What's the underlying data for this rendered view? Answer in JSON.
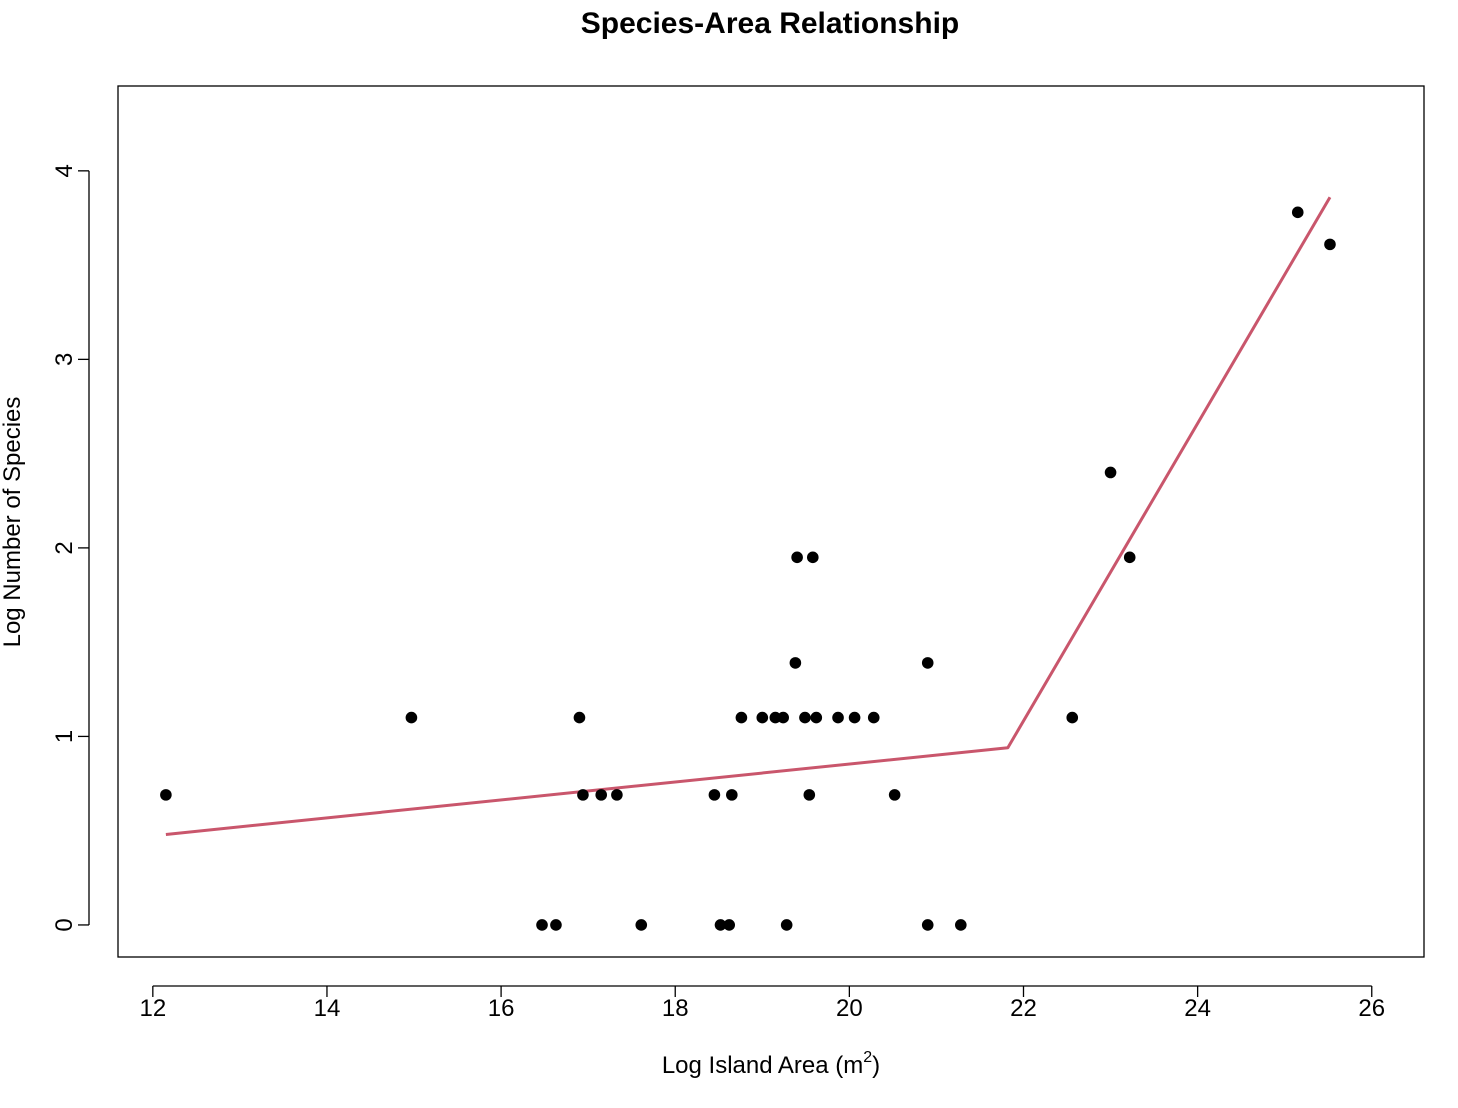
{
  "chart_data": {
    "type": "scatter",
    "title": "Species-Area Relationship",
    "xlabel": "Log Island Area (m",
    "xlabel_superscript": "2",
    "xlabel_suffix": ")",
    "ylabel": "Log Number of Species",
    "xlim": [
      11.6,
      26.6
    ],
    "ylim": [
      -0.17,
      4.45
    ],
    "x_ticks": [
      "12",
      "14",
      "16",
      "18",
      "20",
      "22",
      "24",
      "26"
    ],
    "y_ticks": [
      "0",
      "1",
      "2",
      "3",
      "4"
    ],
    "grid": false,
    "legend": "none",
    "points": [
      {
        "x": 12.15,
        "y": 0.69
      },
      {
        "x": 14.97,
        "y": 1.1
      },
      {
        "x": 16.47,
        "y": 0.0
      },
      {
        "x": 16.63,
        "y": 0.0
      },
      {
        "x": 16.9,
        "y": 1.1
      },
      {
        "x": 16.94,
        "y": 0.69
      },
      {
        "x": 17.15,
        "y": 0.69
      },
      {
        "x": 17.33,
        "y": 0.69
      },
      {
        "x": 17.61,
        "y": 0.0
      },
      {
        "x": 18.45,
        "y": 0.69
      },
      {
        "x": 18.52,
        "y": 0.0
      },
      {
        "x": 18.62,
        "y": 0.0
      },
      {
        "x": 18.65,
        "y": 0.69
      },
      {
        "x": 18.76,
        "y": 1.1
      },
      {
        "x": 19.0,
        "y": 1.1
      },
      {
        "x": 19.15,
        "y": 1.1
      },
      {
        "x": 19.24,
        "y": 1.1
      },
      {
        "x": 19.28,
        "y": 0.0
      },
      {
        "x": 19.38,
        "y": 1.39
      },
      {
        "x": 19.4,
        "y": 1.95
      },
      {
        "x": 19.49,
        "y": 1.1
      },
      {
        "x": 19.54,
        "y": 0.69
      },
      {
        "x": 19.58,
        "y": 1.95
      },
      {
        "x": 19.62,
        "y": 1.1
      },
      {
        "x": 19.87,
        "y": 1.1
      },
      {
        "x": 20.06,
        "y": 1.1
      },
      {
        "x": 20.28,
        "y": 1.1
      },
      {
        "x": 20.52,
        "y": 0.69
      },
      {
        "x": 20.9,
        "y": 1.39
      },
      {
        "x": 20.9,
        "y": 0.0
      },
      {
        "x": 21.28,
        "y": 0.0
      },
      {
        "x": 22.56,
        "y": 1.1
      },
      {
        "x": 23.0,
        "y": 2.4
      },
      {
        "x": 23.22,
        "y": 1.95
      },
      {
        "x": 25.15,
        "y": 3.78
      },
      {
        "x": 25.52,
        "y": 3.61
      }
    ],
    "fit_line": {
      "color": "#c9566c",
      "x": [
        12.15,
        21.82,
        25.52
      ],
      "y": [
        0.48,
        0.94,
        3.86
      ]
    },
    "point_color": "#000000",
    "frame_color": "#000000"
  }
}
